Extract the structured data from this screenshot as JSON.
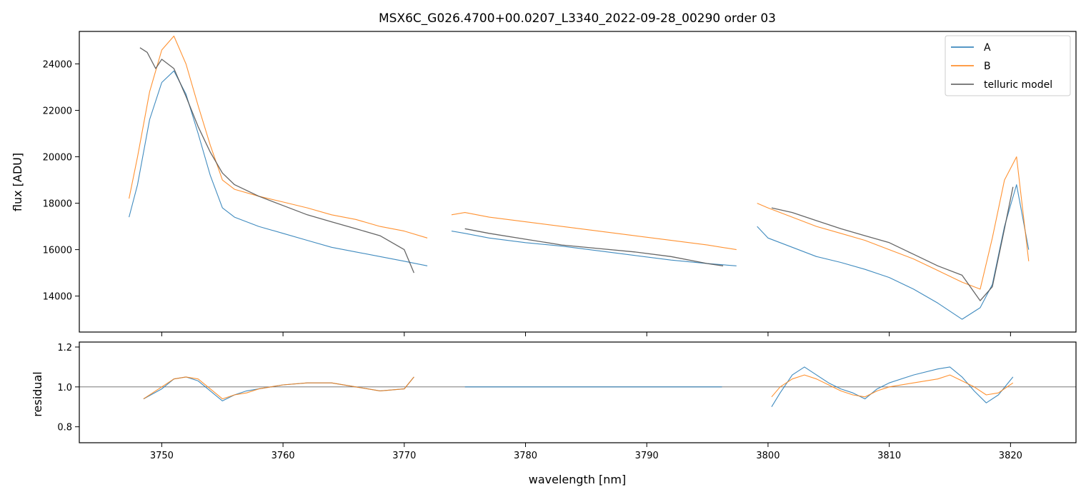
{
  "colors": {
    "A": "#1f77b4",
    "B": "#ff7f0e",
    "telluric": "#555555",
    "refline": "#666666"
  },
  "chart_data": [
    {
      "type": "line",
      "title": "MSX6C_G026.4700+00.0207_L3340_2022-09-28_00290  order 03",
      "xlabel": "",
      "ylabel": "flux [ADU]",
      "xlim": [
        3743.2,
        3825.4
      ],
      "ylim": [
        12450,
        25400
      ],
      "yticks": [
        14000,
        16000,
        18000,
        20000,
        22000,
        24000
      ],
      "ytick_labels": [
        "14000",
        "16000",
        "18000",
        "20000",
        "22000",
        "24000"
      ],
      "legend": {
        "position": "top-right",
        "entries": [
          "A",
          "B",
          "telluric model"
        ]
      },
      "series": [
        {
          "name": "A",
          "segments": [
            {
              "x": [
                3747.3,
                3748,
                3749,
                3750,
                3751,
                3752,
                3753,
                3754,
                3755,
                3756,
                3758,
                3760,
                3762,
                3764,
                3766,
                3768,
                3770,
                3771.9
              ],
              "y": [
                17400,
                18800,
                21600,
                23200,
                23700,
                22700,
                21000,
                19200,
                17800,
                17400,
                17000,
                16700,
                16400,
                16100,
                15900,
                15700,
                15500,
                15300
              ]
            },
            {
              "x": [
                3773.9,
                3775,
                3777,
                3780,
                3783,
                3786,
                3789,
                3792,
                3795,
                3797.4
              ],
              "y": [
                16800,
                16700,
                16500,
                16300,
                16150,
                15950,
                15750,
                15550,
                15400,
                15300
              ]
            },
            {
              "x": [
                3799.1,
                3800,
                3802,
                3804,
                3806,
                3808,
                3810,
                3812,
                3814,
                3816,
                3817.5,
                3818.5,
                3819.5,
                3820.5,
                3821.5
              ],
              "y": [
                17000,
                16500,
                16100,
                15700,
                15450,
                15150,
                14800,
                14300,
                13700,
                13000,
                13500,
                14500,
                17000,
                18800,
                16000
              ]
            }
          ]
        },
        {
          "name": "B",
          "segments": [
            {
              "x": [
                3747.3,
                3748,
                3749,
                3750,
                3751,
                3752,
                3753,
                3754,
                3755,
                3756,
                3758,
                3760,
                3762,
                3764,
                3766,
                3768,
                3770,
                3771.9
              ],
              "y": [
                18200,
                20000,
                22800,
                24600,
                25200,
                24000,
                22200,
                20500,
                19000,
                18600,
                18300,
                18050,
                17800,
                17500,
                17300,
                17000,
                16800,
                16500
              ]
            },
            {
              "x": [
                3773.9,
                3775,
                3777,
                3780,
                3783,
                3786,
                3789,
                3792,
                3795,
                3797.4
              ],
              "y": [
                17500,
                17600,
                17400,
                17200,
                17000,
                16800,
                16600,
                16400,
                16200,
                16000
              ]
            },
            {
              "x": [
                3799.1,
                3800,
                3802,
                3804,
                3806,
                3808,
                3810,
                3812,
                3814,
                3816,
                3817.5,
                3818.5,
                3819.5,
                3820.5,
                3821.5
              ],
              "y": [
                18000,
                17800,
                17400,
                17000,
                16700,
                16400,
                16000,
                15600,
                15100,
                14600,
                14300,
                16500,
                19000,
                20000,
                15500
              ]
            }
          ]
        },
        {
          "name": "telluric model",
          "segments": [
            {
              "x": [
                3748.2,
                3748.8,
                3749.5,
                3750,
                3751,
                3752,
                3753,
                3754,
                3755,
                3756,
                3758,
                3760,
                3762,
                3764,
                3766,
                3768,
                3770,
                3770.8
              ],
              "y": [
                24700,
                24500,
                23800,
                24200,
                23800,
                22600,
                21300,
                20200,
                19300,
                18800,
                18300,
                17900,
                17500,
                17200,
                16900,
                16600,
                16000,
                15000
              ]
            },
            {
              "x": [
                3775,
                3777,
                3780,
                3783,
                3786,
                3789,
                3792,
                3795,
                3796.3
              ],
              "y": [
                16900,
                16700,
                16450,
                16200,
                16050,
                15900,
                15700,
                15400,
                15300
              ]
            },
            {
              "x": [
                3800.3,
                3802,
                3804,
                3806,
                3808,
                3810,
                3812,
                3814,
                3816,
                3817.5,
                3818.5,
                3819.5,
                3820.2
              ],
              "y": [
                17800,
                17600,
                17250,
                16900,
                16600,
                16300,
                15800,
                15300,
                14900,
                13800,
                14400,
                16900,
                18700
              ]
            }
          ]
        }
      ]
    },
    {
      "type": "line",
      "title": "",
      "xlabel": "wavelength [nm]",
      "ylabel": "residual",
      "xlim": [
        3743.2,
        3825.4
      ],
      "ylim": [
        0.72,
        1.225
      ],
      "yticks": [
        0.8,
        1.0,
        1.2
      ],
      "ytick_labels": [
        "0.8",
        "1.0",
        "1.2"
      ],
      "xticks": [
        3750,
        3760,
        3770,
        3780,
        3790,
        3800,
        3810,
        3820
      ],
      "xtick_labels": [
        "3750",
        "3760",
        "3770",
        "3780",
        "3790",
        "3800",
        "3810",
        "3820"
      ],
      "reference_line": 1.0,
      "series": [
        {
          "name": "A",
          "segments": [
            {
              "x": [
                3748.5,
                3750,
                3751,
                3752,
                3753,
                3754,
                3755,
                3756,
                3757,
                3758,
                3760,
                3762,
                3764,
                3766,
                3768,
                3770,
                3770.8
              ],
              "y": [
                0.94,
                0.99,
                1.04,
                1.05,
                1.03,
                0.98,
                0.93,
                0.96,
                0.98,
                0.99,
                1.01,
                1.02,
                1.02,
                1.0,
                0.98,
                0.99,
                1.05
              ]
            },
            {
              "x": [
                3775,
                3780,
                3785,
                3790,
                3795,
                3796.2
              ],
              "y": [
                1.0,
                1.0,
                1.0,
                1.0,
                1.0,
                1.0
              ]
            },
            {
              "x": [
                3800.3,
                3801,
                3802,
                3803,
                3804,
                3805,
                3806,
                3807,
                3808,
                3809,
                3810,
                3812,
                3814,
                3815,
                3816,
                3817,
                3818,
                3819,
                3820.2
              ],
              "y": [
                0.9,
                0.97,
                1.06,
                1.1,
                1.06,
                1.02,
                0.99,
                0.97,
                0.94,
                0.99,
                1.02,
                1.06,
                1.09,
                1.1,
                1.05,
                0.98,
                0.92,
                0.96,
                1.05
              ]
            }
          ]
        },
        {
          "name": "B",
          "segments": [
            {
              "x": [
                3748.5,
                3750,
                3751,
                3752,
                3753,
                3754,
                3755,
                3756,
                3757,
                3758,
                3760,
                3762,
                3764,
                3766,
                3768,
                3770,
                3770.8
              ],
              "y": [
                0.94,
                1.0,
                1.04,
                1.05,
                1.04,
                0.99,
                0.94,
                0.96,
                0.97,
                0.99,
                1.01,
                1.02,
                1.02,
                1.0,
                0.98,
                0.99,
                1.05
              ]
            },
            {
              "x": [
                3800.3,
                3801,
                3802,
                3803,
                3804,
                3805,
                3806,
                3807,
                3808,
                3809,
                3810,
                3812,
                3814,
                3815,
                3816,
                3817,
                3818,
                3819,
                3820.2
              ],
              "y": [
                0.95,
                1.0,
                1.04,
                1.06,
                1.04,
                1.01,
                0.98,
                0.96,
                0.95,
                0.98,
                1.0,
                1.02,
                1.04,
                1.06,
                1.03,
                1.0,
                0.96,
                0.97,
                1.02
              ]
            }
          ]
        }
      ]
    }
  ]
}
